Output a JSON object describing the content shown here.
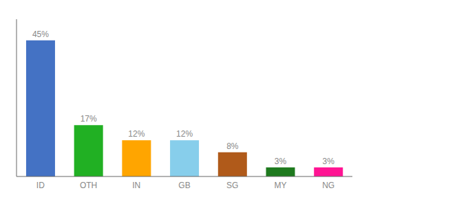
{
  "chart_data": {
    "type": "bar",
    "categories": [
      "ID",
      "OTH",
      "IN",
      "GB",
      "SG",
      "MY",
      "NG"
    ],
    "values": [
      45,
      17,
      12,
      12,
      8,
      3,
      3
    ],
    "value_labels": [
      "45%",
      "17%",
      "12%",
      "12%",
      "8%",
      "3%",
      "3%"
    ],
    "colors": [
      "#4472C4",
      "#21B023",
      "#FFA500",
      "#87CEEB",
      "#B05A1A",
      "#1E7A1E",
      "#FF1493"
    ],
    "ylim": [
      0,
      52
    ],
    "data_labels": true,
    "tick_labels": "x"
  }
}
